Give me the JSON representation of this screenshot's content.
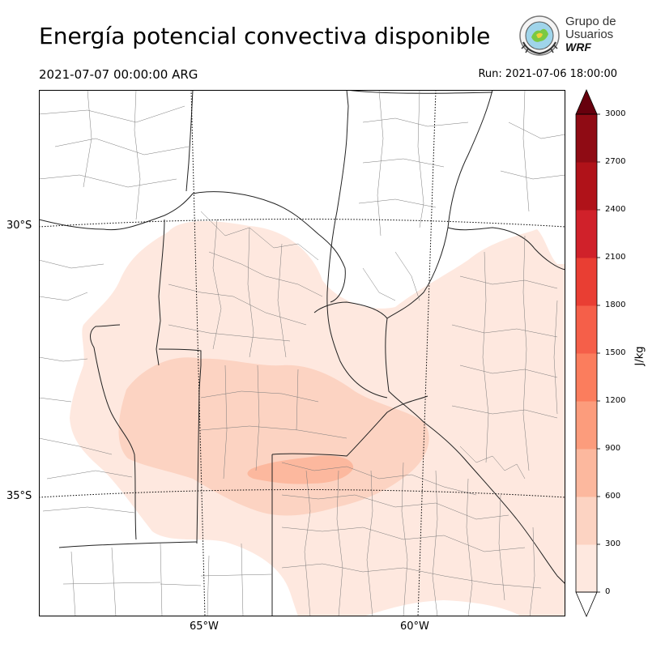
{
  "header": {
    "title": "Energía potencial convectiva disponible",
    "valid_time": "2021-07-07 00:00:00 ARG",
    "run_time": "Run: 2021-07-06 18:00:00"
  },
  "logo": {
    "line1": "Grupo de",
    "line2": "Usuarios",
    "line3": "WRF"
  },
  "map": {
    "lat_labels": [
      "30°S",
      "35°S"
    ],
    "lon_labels": [
      "65°W",
      "60°W"
    ]
  },
  "colorbar": {
    "unit": "J/kg",
    "ticks": [
      "0",
      "300",
      "600",
      "900",
      "1200",
      "1500",
      "1800",
      "2100",
      "2400",
      "2700",
      "3000"
    ],
    "colors": [
      "#fee8df",
      "#fcd3c2",
      "#fcb89e",
      "#fc9c7c",
      "#fb7d5d",
      "#f55f49",
      "#e93e33",
      "#d0212a",
      "#b01219",
      "#8f0b14",
      "#67000d"
    ],
    "extend": "both"
  },
  "colors": {
    "level1": "#fee8df",
    "level2": "#fcd3c2",
    "level3": "#fcb89e"
  }
}
